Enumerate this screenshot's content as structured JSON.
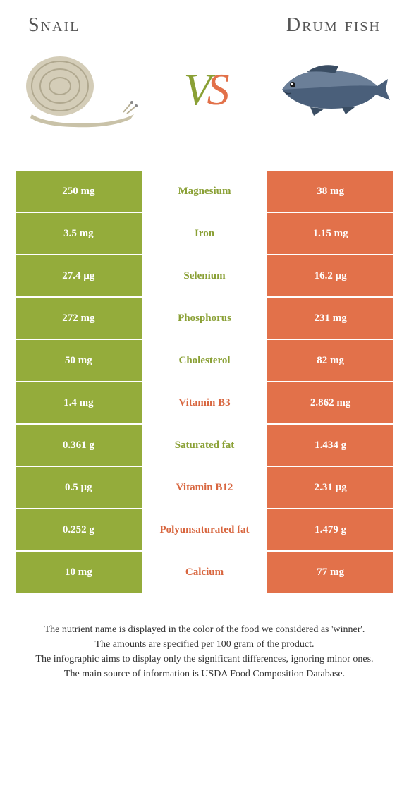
{
  "header": {
    "left_title": "Snail",
    "right_title": "Drum fish",
    "vs_v": "V",
    "vs_s": "S"
  },
  "colors": {
    "green": "#94ac3b",
    "green_text": "#8aa035",
    "orange": "#e2714a",
    "orange_text": "#d8663f"
  },
  "table": {
    "rows": [
      {
        "left": "250 mg",
        "name": "Magnesium",
        "right": "38 mg",
        "winner": "green"
      },
      {
        "left": "3.5 mg",
        "name": "Iron",
        "right": "1.15 mg",
        "winner": "green"
      },
      {
        "left": "27.4 µg",
        "name": "Selenium",
        "right": "16.2 µg",
        "winner": "green"
      },
      {
        "left": "272 mg",
        "name": "Phosphorus",
        "right": "231 mg",
        "winner": "green"
      },
      {
        "left": "50 mg",
        "name": "Cholesterol",
        "right": "82 mg",
        "winner": "green"
      },
      {
        "left": "1.4 mg",
        "name": "Vitamin B3",
        "right": "2.862 mg",
        "winner": "orange"
      },
      {
        "left": "0.361 g",
        "name": "Saturated fat",
        "right": "1.434 g",
        "winner": "green"
      },
      {
        "left": "0.5 µg",
        "name": "Vitamin B12",
        "right": "2.31 µg",
        "winner": "orange"
      },
      {
        "left": "0.252 g",
        "name": "Polyunsaturated fat",
        "right": "1.479 g",
        "winner": "orange"
      },
      {
        "left": "10 mg",
        "name": "Calcium",
        "right": "77 mg",
        "winner": "orange"
      }
    ]
  },
  "footnotes": {
    "line1": "The nutrient name is displayed in the color of the food we considered as 'winner'.",
    "line2": "The amounts are specified per 100 gram of the product.",
    "line3": "The infographic aims to display only the significant differences, ignoring minor ones.",
    "line4": "The main source of information is USDA Food Composition Database."
  }
}
